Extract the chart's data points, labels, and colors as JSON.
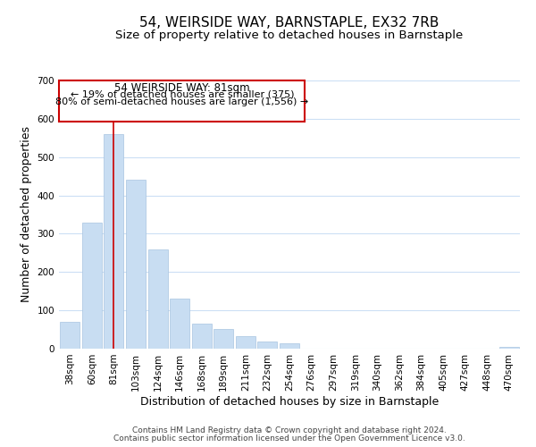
{
  "title": "54, WEIRSIDE WAY, BARNSTAPLE, EX32 7RB",
  "subtitle": "Size of property relative to detached houses in Barnstaple",
  "xlabel": "Distribution of detached houses by size in Barnstaple",
  "ylabel": "Number of detached properties",
  "bar_labels": [
    "38sqm",
    "60sqm",
    "81sqm",
    "103sqm",
    "124sqm",
    "146sqm",
    "168sqm",
    "189sqm",
    "211sqm",
    "232sqm",
    "254sqm",
    "276sqm",
    "297sqm",
    "319sqm",
    "340sqm",
    "362sqm",
    "384sqm",
    "405sqm",
    "427sqm",
    "448sqm",
    "470sqm"
  ],
  "bar_values": [
    70,
    328,
    560,
    440,
    258,
    130,
    65,
    52,
    33,
    18,
    14,
    0,
    0,
    0,
    0,
    0,
    0,
    0,
    0,
    0,
    5
  ],
  "bar_color": "#c8ddf2",
  "bar_edge_color": "#a8c4e0",
  "highlight_bar_index": 2,
  "highlight_line_color": "#cc0000",
  "ylim": [
    0,
    700
  ],
  "yticks": [
    0,
    100,
    200,
    300,
    400,
    500,
    600,
    700
  ],
  "annotation_title": "54 WEIRSIDE WAY: 81sqm",
  "annotation_line1": "← 19% of detached houses are smaller (375)",
  "annotation_line2": "80% of semi-detached houses are larger (1,556) →",
  "annotation_box_color": "#ffffff",
  "annotation_box_edge": "#cc0000",
  "footer_line1": "Contains HM Land Registry data © Crown copyright and database right 2024.",
  "footer_line2": "Contains public sector information licensed under the Open Government Licence v3.0.",
  "background_color": "#ffffff",
  "grid_color": "#ccdff5",
  "title_fontsize": 11,
  "subtitle_fontsize": 9.5,
  "axis_label_fontsize": 9,
  "tick_fontsize": 7.5,
  "footer_fontsize": 6.5,
  "ann_title_fontsize": 8.5,
  "ann_text_fontsize": 8
}
